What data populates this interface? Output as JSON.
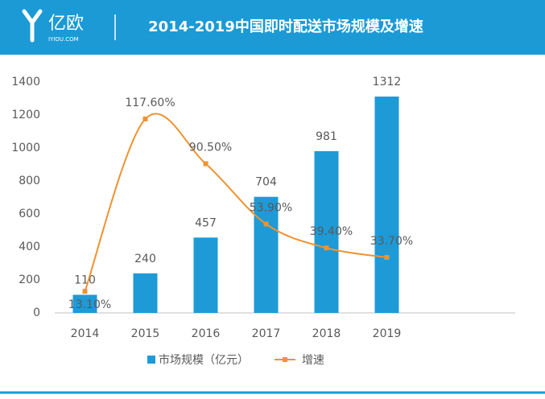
{
  "header": {
    "logo": "亿欧",
    "logo_sub": "IYIOU.COM"
  },
  "chart_data": {
    "type": "bar",
    "title": "2014-2019中国即时配送市场规模及增速",
    "categories": [
      "2014",
      "2015",
      "2016",
      "2017",
      "2018",
      "2019"
    ],
    "series": [
      {
        "name": "市场规模（亿元）",
        "type": "bar",
        "color": "#1e9ad6",
        "values": [
          110,
          240,
          457,
          704,
          981,
          1312
        ]
      },
      {
        "name": "增速",
        "type": "line",
        "axis": "y2",
        "color": "#ee9330",
        "values": [
          13.1,
          117.6,
          90.5,
          53.9,
          39.4,
          33.7
        ],
        "value_labels": [
          "13.10%",
          "117.60%",
          "90.50%",
          "53.90%",
          "39.40%",
          "33.70%"
        ]
      }
    ],
    "ylim": [
      0,
      1400
    ],
    "yticks": [
      0,
      200,
      400,
      600,
      800,
      1000,
      1200,
      1400
    ],
    "y2lim": [
      0,
      140
    ]
  }
}
